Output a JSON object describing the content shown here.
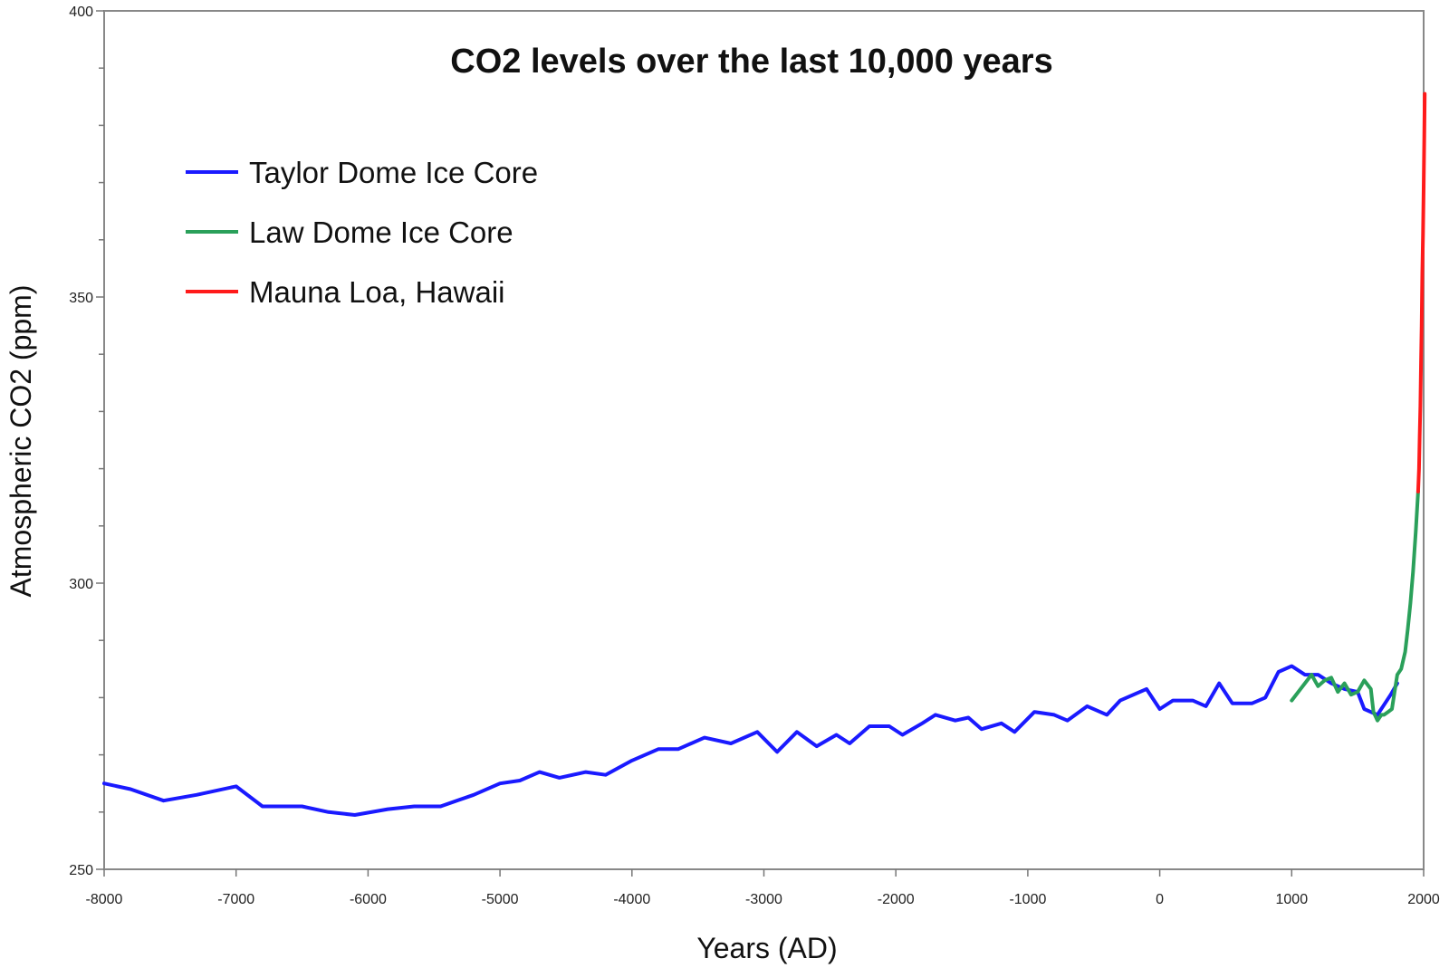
{
  "chart_data": {
    "type": "line",
    "title": "CO2 levels over the last 10,000 years",
    "xlabel": "Years (AD)",
    "ylabel": "Atmospheric CO2 (ppm)",
    "xlim": [
      -8000,
      2000
    ],
    "ylim": [
      250,
      400
    ],
    "x_ticks": [
      "-8000",
      "-7000",
      "-6000",
      "-5000",
      "-4000",
      "-3000",
      "-2000",
      "-1000",
      "0",
      "1000",
      "2000"
    ],
    "y_ticks": [
      "250",
      "300",
      "350",
      "400"
    ],
    "grid": false,
    "legend_position": "top-left",
    "series": [
      {
        "name": "Taylor Dome Ice Core",
        "color": "#1a1aff",
        "points": [
          [
            -8000,
            265
          ],
          [
            -7800,
            264
          ],
          [
            -7550,
            262
          ],
          [
            -7300,
            263
          ],
          [
            -7000,
            264.5
          ],
          [
            -6800,
            261
          ],
          [
            -6500,
            261
          ],
          [
            -6300,
            260
          ],
          [
            -6100,
            259.5
          ],
          [
            -5850,
            260.5
          ],
          [
            -5650,
            261
          ],
          [
            -5450,
            261
          ],
          [
            -5200,
            263
          ],
          [
            -5000,
            265
          ],
          [
            -4850,
            265.5
          ],
          [
            -4700,
            267
          ],
          [
            -4550,
            266
          ],
          [
            -4350,
            267
          ],
          [
            -4200,
            266.5
          ],
          [
            -4000,
            269
          ],
          [
            -3800,
            271
          ],
          [
            -3650,
            271
          ],
          [
            -3450,
            273
          ],
          [
            -3250,
            272
          ],
          [
            -3050,
            274
          ],
          [
            -2900,
            270.5
          ],
          [
            -2750,
            274
          ],
          [
            -2600,
            271.5
          ],
          [
            -2450,
            273.5
          ],
          [
            -2350,
            272
          ],
          [
            -2200,
            275
          ],
          [
            -2050,
            275
          ],
          [
            -1950,
            273.5
          ],
          [
            -1800,
            275.5
          ],
          [
            -1700,
            277
          ],
          [
            -1550,
            276
          ],
          [
            -1450,
            276.5
          ],
          [
            -1350,
            274.5
          ],
          [
            -1200,
            275.5
          ],
          [
            -1100,
            274
          ],
          [
            -950,
            277.5
          ],
          [
            -800,
            277
          ],
          [
            -700,
            276
          ],
          [
            -550,
            278.5
          ],
          [
            -400,
            277
          ],
          [
            -300,
            279.5
          ],
          [
            -100,
            281.5
          ],
          [
            0,
            278
          ],
          [
            100,
            279.5
          ],
          [
            250,
            279.5
          ],
          [
            350,
            278.5
          ],
          [
            450,
            282.5
          ],
          [
            550,
            279
          ],
          [
            700,
            279
          ],
          [
            800,
            280
          ],
          [
            900,
            284.5
          ],
          [
            1000,
            285.5
          ],
          [
            1100,
            284
          ],
          [
            1200,
            284
          ],
          [
            1300,
            282.5
          ],
          [
            1400,
            281.5
          ],
          [
            1500,
            281
          ],
          [
            1550,
            278
          ],
          [
            1650,
            277
          ],
          [
            1750,
            280.5
          ],
          [
            1800,
            282.5
          ]
        ]
      },
      {
        "name": "Law Dome Ice Core",
        "color": "#2aa05a",
        "points": [
          [
            1000,
            279.5
          ],
          [
            1100,
            282.5
          ],
          [
            1150,
            284
          ],
          [
            1200,
            282
          ],
          [
            1250,
            283
          ],
          [
            1300,
            283.5
          ],
          [
            1350,
            281
          ],
          [
            1400,
            282.5
          ],
          [
            1450,
            280.5
          ],
          [
            1500,
            281
          ],
          [
            1550,
            283
          ],
          [
            1600,
            281.5
          ],
          [
            1620,
            277.5
          ],
          [
            1650,
            276
          ],
          [
            1680,
            277
          ],
          [
            1700,
            277
          ],
          [
            1730,
            277.5
          ],
          [
            1760,
            278
          ],
          [
            1780,
            281
          ],
          [
            1800,
            284
          ],
          [
            1830,
            285
          ],
          [
            1860,
            288
          ],
          [
            1880,
            292
          ],
          [
            1900,
            296.5
          ],
          [
            1920,
            302
          ],
          [
            1940,
            309
          ],
          [
            1958,
            316
          ]
        ]
      },
      {
        "name": "Mauna Loa, Hawaii",
        "color": "#ff1a1a",
        "points": [
          [
            1958,
            316
          ],
          [
            1965,
            320
          ],
          [
            1970,
            325.5
          ],
          [
            1975,
            331
          ],
          [
            1980,
            338.5
          ],
          [
            1985,
            345
          ],
          [
            1990,
            354
          ],
          [
            1995,
            361
          ],
          [
            2000,
            369
          ],
          [
            2005,
            378
          ],
          [
            2008,
            385.5
          ]
        ]
      }
    ]
  }
}
